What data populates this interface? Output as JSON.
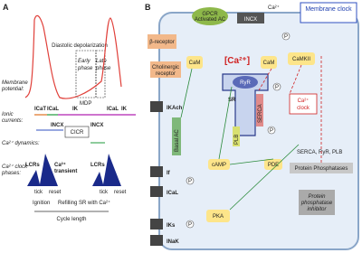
{
  "panel_a": {
    "label": "A",
    "header": "Diastolic depolarization",
    "early": "Early",
    "late": "Late",
    "phase": "phase",
    "mdp": "MDP",
    "rows": [
      "Membrane",
      "potential:",
      "Ionic",
      "currents:",
      "Ca²⁺ dynamics:",
      "Ca²⁺ clock",
      "phases:"
    ],
    "currents": [
      "ICaT",
      "ICaL",
      "IK",
      "INCX"
    ],
    "cicr": "CICR",
    "lcrs": "LCRs",
    "transient": [
      "Ca²⁺",
      "transient"
    ],
    "tick": "tick",
    "reset": "reset",
    "ignition": "Ignition",
    "refilling": "Refilling SR with Ca²⁺",
    "cycle": "Cycle length"
  },
  "panel_b": {
    "label": "B",
    "membrane_clock": "Membrane clock",
    "gpcr": [
      "GPCR",
      "Activated AC"
    ],
    "beta": "β-receptor",
    "cholinergic": [
      "Cholinergic",
      "receptor"
    ],
    "cam": "CaM",
    "ca": "[Ca²⁺]",
    "camkii": "CaMKII",
    "ryr": "RyR",
    "sr": "SR",
    "serca": "SERCA",
    "plb": "PLB",
    "ca_clock": [
      "Ca²⁺",
      "clock"
    ],
    "ikach": "IKAch",
    "basal_ac": "Basal AC",
    "camp": "cAMP",
    "pde": "PDE",
    "targets": "SERCA, RyR, PLB",
    "phosphatases": "Protein Phosphatases",
    "inhibitor": [
      "Protein",
      "phosphatase",
      "inhibitor"
    ],
    "if": "If",
    "ical": "ICaL",
    "pka": "PKA",
    "iks": "IKs",
    "inak": "INaK",
    "incx": "INCX",
    "ca_ion": "Ca²⁺",
    "p": "P"
  }
}
